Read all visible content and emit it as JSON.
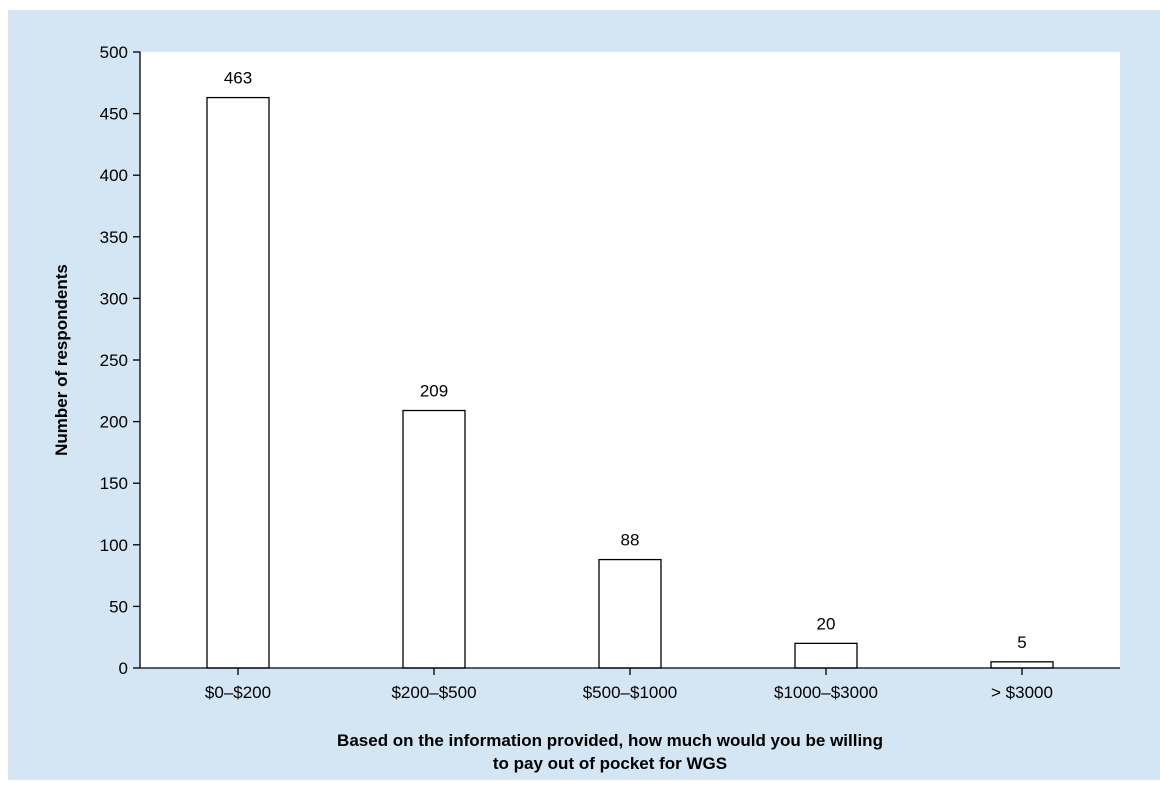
{
  "chart_data": {
    "type": "bar",
    "title": "",
    "categories": [
      "$0–$200",
      "$200–$500",
      "$500–$1000",
      "$1000–$3000",
      "> $3000"
    ],
    "values": [
      463,
      209,
      88,
      20,
      5
    ],
    "data_labels": [
      "463",
      "209",
      "88",
      "20",
      "5"
    ],
    "ylabel": "Number of respondents",
    "xlabel_lines": [
      "Based on the information provided, how much would you be willing",
      "to pay out of pocket for WGS"
    ],
    "ylim": [
      0,
      500
    ],
    "yticks": [
      0,
      50,
      100,
      150,
      200,
      250,
      300,
      350,
      400,
      450,
      500
    ],
    "ytick_labels": [
      "0",
      "50",
      "100",
      "150",
      "200",
      "250",
      "300",
      "350",
      "400",
      "450",
      "500"
    ],
    "grid": false,
    "legend": false,
    "colors": {
      "figure_background": "#d4e5f3",
      "plot_background": "#ffffff",
      "bar_fill": "#ffffff",
      "bar_stroke": "#000000"
    }
  }
}
